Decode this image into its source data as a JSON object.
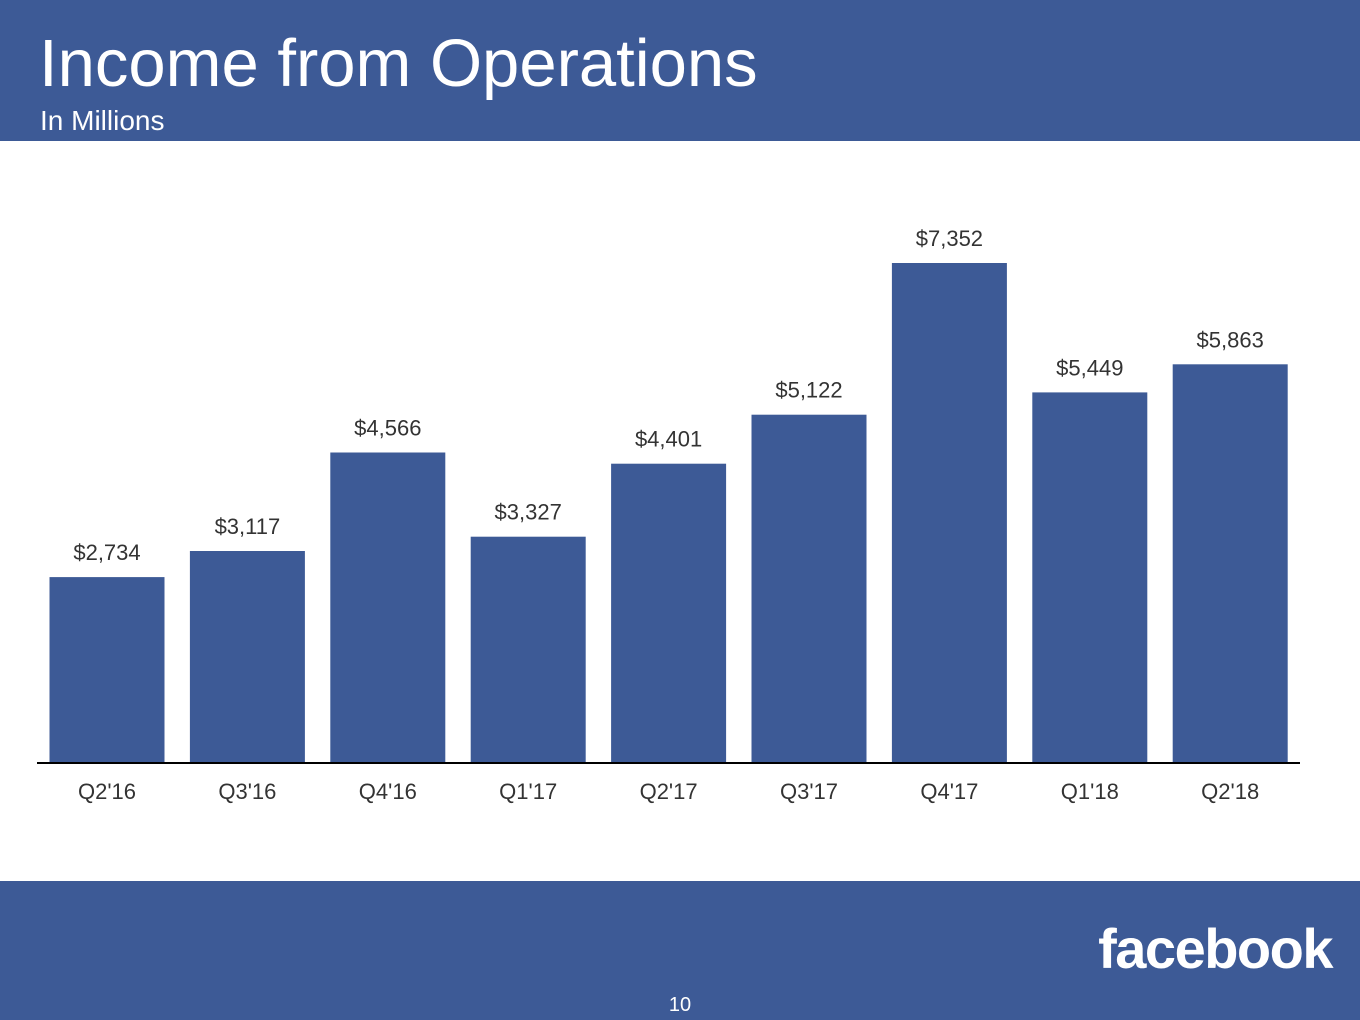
{
  "header": {
    "title": "Income from Operations",
    "subtitle": "In Millions"
  },
  "footer": {
    "logo_text": "facebook",
    "page_number": "10"
  },
  "colors": {
    "brand": "#3d5a96",
    "bar": "#3d5a96",
    "label": "#333333",
    "axis": "#000000"
  },
  "chart_data": {
    "type": "bar",
    "title": "Income from Operations",
    "subtitle": "In Millions",
    "categories": [
      "Q2'16",
      "Q3'16",
      "Q4'16",
      "Q1'17",
      "Q2'17",
      "Q3'17",
      "Q4'17",
      "Q1'18",
      "Q2'18"
    ],
    "values": [
      2734,
      3117,
      4566,
      3327,
      4401,
      5122,
      7352,
      5449,
      5863
    ],
    "value_labels": [
      "$2,734",
      "$3,117",
      "$4,566",
      "$3,327",
      "$4,401",
      "$5,122",
      "$7,352",
      "$5,449",
      "$5,863"
    ],
    "xlabel": "",
    "ylabel": "",
    "ylim": [
      0,
      7352
    ],
    "grid": false,
    "legend": "none"
  }
}
